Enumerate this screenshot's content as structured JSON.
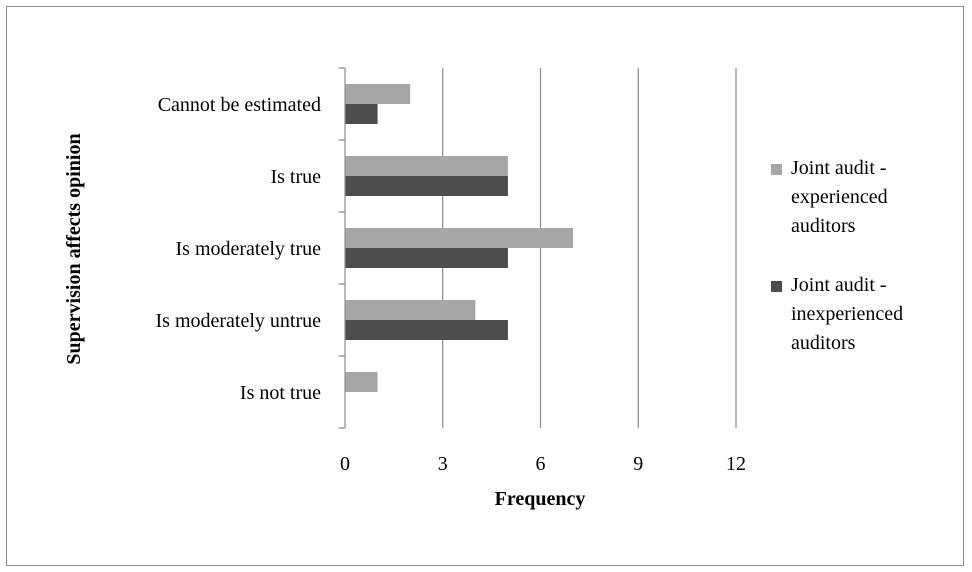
{
  "chart_data": {
    "type": "bar",
    "orientation": "horizontal",
    "title": "",
    "xlabel": "Frequency",
    "ylabel": "Supervision affects opinion",
    "categories": [
      "Cannot be estimated",
      "Is true",
      "Is moderately true",
      "Is  moderately untrue",
      "Is not true"
    ],
    "series": [
      {
        "name": "Joint audit - experienced auditors",
        "values": [
          2,
          5,
          7,
          4,
          1
        ],
        "color": "#a6a6a6"
      },
      {
        "name": "Joint audit - inexperienced auditors",
        "values": [
          1,
          5,
          5,
          5,
          0
        ],
        "color": "#4d4d4d"
      }
    ],
    "xlim": [
      0,
      12
    ],
    "xticks": [
      "0",
      "3",
      "6",
      "9",
      "12"
    ],
    "grid": "vertical",
    "legend_position": "right",
    "legend_lines": [
      [
        "Joint audit -",
        "experienced",
        "auditors"
      ],
      [
        "Joint audit -",
        "inexperienced",
        "auditors"
      ]
    ]
  }
}
